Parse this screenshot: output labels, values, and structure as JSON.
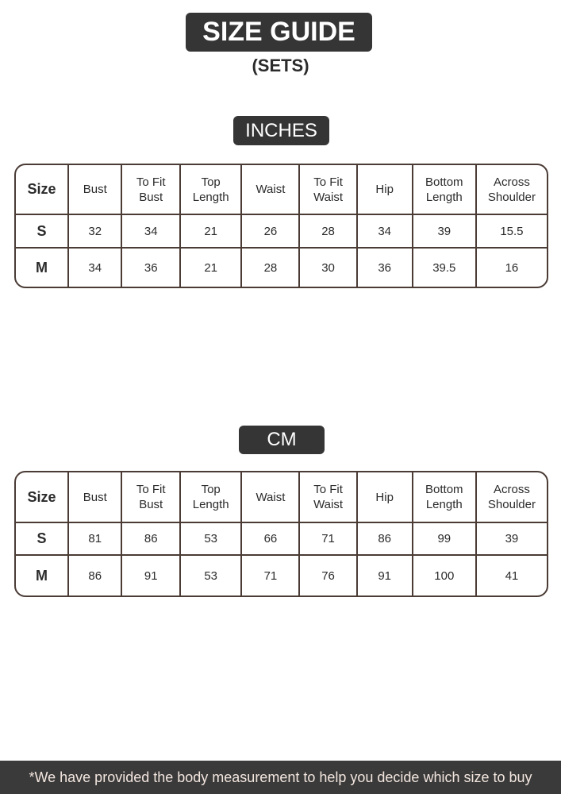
{
  "title": "SIZE GUIDE",
  "subtitle": "(SETS)",
  "headers": [
    "Size",
    "Bust",
    "To Fit Bust",
    "Top Length",
    "Waist",
    "To Fit Waist",
    "Hip",
    "Bottom Length",
    "Across Shoulder"
  ],
  "tables": [
    {
      "unit": "INCHES",
      "rows": [
        [
          "S",
          "32",
          "34",
          "21",
          "26",
          "28",
          "34",
          "39",
          "15.5"
        ],
        [
          "M",
          "34",
          "36",
          "21",
          "28",
          "30",
          "36",
          "39.5",
          "16"
        ]
      ]
    },
    {
      "unit": "CM",
      "rows": [
        [
          "S",
          "81",
          "86",
          "53",
          "66",
          "71",
          "86",
          "99",
          "39"
        ],
        [
          "M",
          "86",
          "91",
          "53",
          "71",
          "76",
          "91",
          "100",
          "41"
        ]
      ]
    }
  ],
  "footer": "*We have provided the body measurement to help you decide which size to buy"
}
